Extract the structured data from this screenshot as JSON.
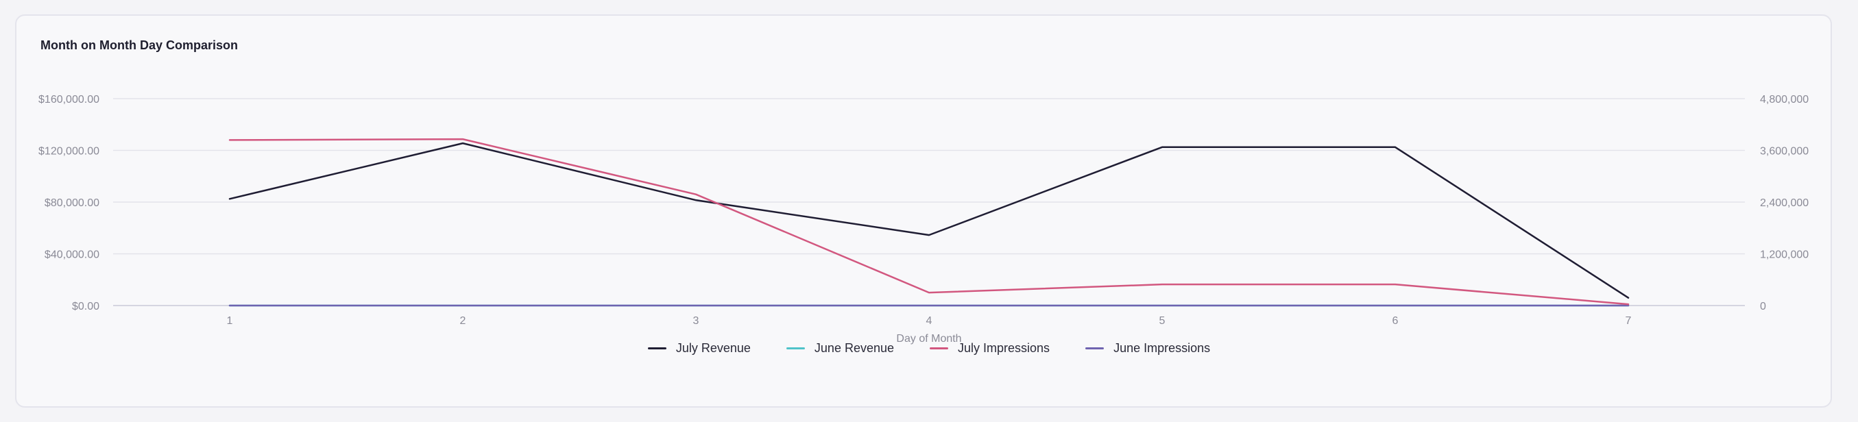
{
  "card": {
    "title": "Month on Month Day Comparison"
  },
  "chart_data": {
    "type": "line",
    "title": "Month on Month Day Comparison",
    "xlabel": "Day of Month",
    "x": [
      1,
      2,
      3,
      4,
      5,
      6,
      7
    ],
    "x_tick_labels": [
      "1",
      "2",
      "3",
      "4",
      "5",
      "6",
      "7"
    ],
    "left_axis": {
      "ylim": [
        0,
        160000
      ],
      "ticks": [
        0,
        40000,
        80000,
        120000,
        160000
      ],
      "tick_labels": [
        "$0.00",
        "$40,000.00",
        "$80,000.00",
        "$120,000.00",
        "$160,000.00"
      ]
    },
    "right_axis": {
      "ylim": [
        0,
        4800000
      ],
      "ticks": [
        0,
        1200000,
        2400000,
        3600000,
        4800000
      ],
      "tick_labels": [
        "0",
        "1,200,000",
        "2,400,000",
        "3,600,000",
        "4,800,000"
      ]
    },
    "grid": true,
    "legend_position": "bottom",
    "series": [
      {
        "name": "July Revenue",
        "axis": "left",
        "color": "#1f1d33",
        "values": [
          82500,
          125500,
          81500,
          54500,
          122500,
          122500,
          6000
        ]
      },
      {
        "name": "June Revenue",
        "axis": "left",
        "color": "#4fc3c9",
        "values": [
          0,
          0,
          0,
          0,
          0,
          0,
          0
        ]
      },
      {
        "name": "July Impressions",
        "axis": "right",
        "color": "#d2577f",
        "values": [
          3840000,
          3860000,
          2580000,
          300000,
          490000,
          490000,
          30000
        ]
      },
      {
        "name": "June Impressions",
        "axis": "right",
        "color": "#6f63b0",
        "values": [
          0,
          0,
          0,
          0,
          0,
          0,
          0
        ]
      }
    ]
  }
}
